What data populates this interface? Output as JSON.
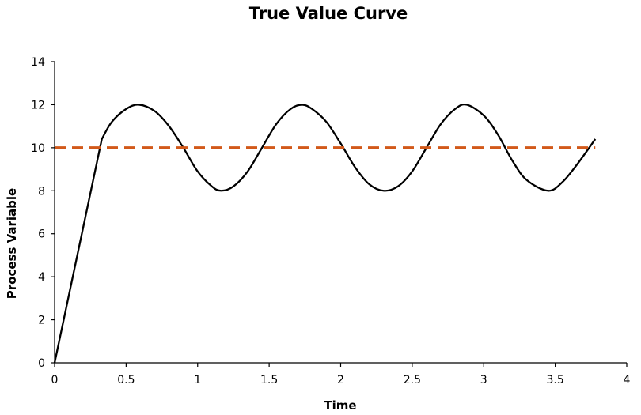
{
  "chart_data": {
    "type": "line",
    "title": "True Value Curve",
    "xlabel": "Time",
    "ylabel": "Process Variable",
    "xlim": [
      0,
      4
    ],
    "ylim": [
      0,
      14
    ],
    "x_ticks": [
      "0",
      "0.5",
      "1",
      "1.5",
      "2",
      "2.5",
      "3",
      "3.5",
      "4"
    ],
    "y_ticks": [
      "0",
      "2",
      "4",
      "6",
      "8",
      "10",
      "12",
      "14"
    ],
    "x_tick_values": [
      0,
      0.5,
      1,
      1.5,
      2,
      2.5,
      3,
      3.5,
      4
    ],
    "y_tick_values": [
      0,
      2,
      4,
      6,
      8,
      10,
      12,
      14
    ],
    "grid": false,
    "legend": "none",
    "series": [
      {
        "color": "#000000",
        "style": "solid",
        "x": [
          0,
          0.33,
          0.4,
          0.5,
          0.59,
          0.7,
          0.8,
          0.9,
          1.0,
          1.1,
          1.165,
          1.25,
          1.35,
          1.45,
          1.55,
          1.65,
          1.73,
          1.8,
          1.9,
          2.0,
          2.1,
          2.2,
          2.3,
          2.4,
          2.5,
          2.6,
          2.7,
          2.8,
          2.88,
          3.0,
          3.1,
          3.2,
          3.3,
          3.45,
          3.55,
          3.65,
          3.78
        ],
        "y": [
          0,
          10.4,
          11.2,
          11.8,
          12.0,
          11.7,
          11.0,
          10.0,
          8.9,
          8.2,
          8.0,
          8.2,
          8.9,
          10.0,
          11.1,
          11.8,
          12.0,
          11.8,
          11.2,
          10.2,
          9.1,
          8.3,
          8.0,
          8.2,
          8.9,
          10.0,
          11.1,
          11.8,
          12.0,
          11.5,
          10.6,
          9.4,
          8.5,
          8.0,
          8.4,
          9.2,
          10.4
        ]
      },
      {
        "color": "#d2591a",
        "style": "dashed",
        "x": [
          0,
          3.78
        ],
        "y": [
          10,
          10
        ]
      }
    ]
  }
}
